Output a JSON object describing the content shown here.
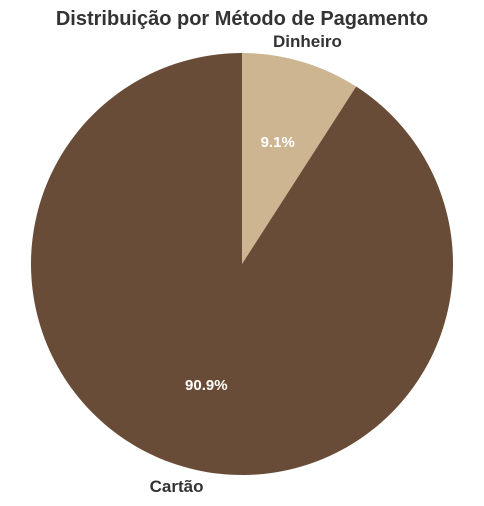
{
  "chart_data": {
    "type": "pie",
    "title": "Distribuição por Método de Pagamento",
    "categories": [
      "Dinheiro",
      "Cartão"
    ],
    "values": [
      9.1,
      90.9
    ],
    "percent_labels": [
      "9.1%",
      "90.9%"
    ],
    "colors": [
      "#ccb590",
      "#684c37"
    ],
    "start_angle": "top (12 o'clock)",
    "direction": "clockwise",
    "legend": "none"
  }
}
